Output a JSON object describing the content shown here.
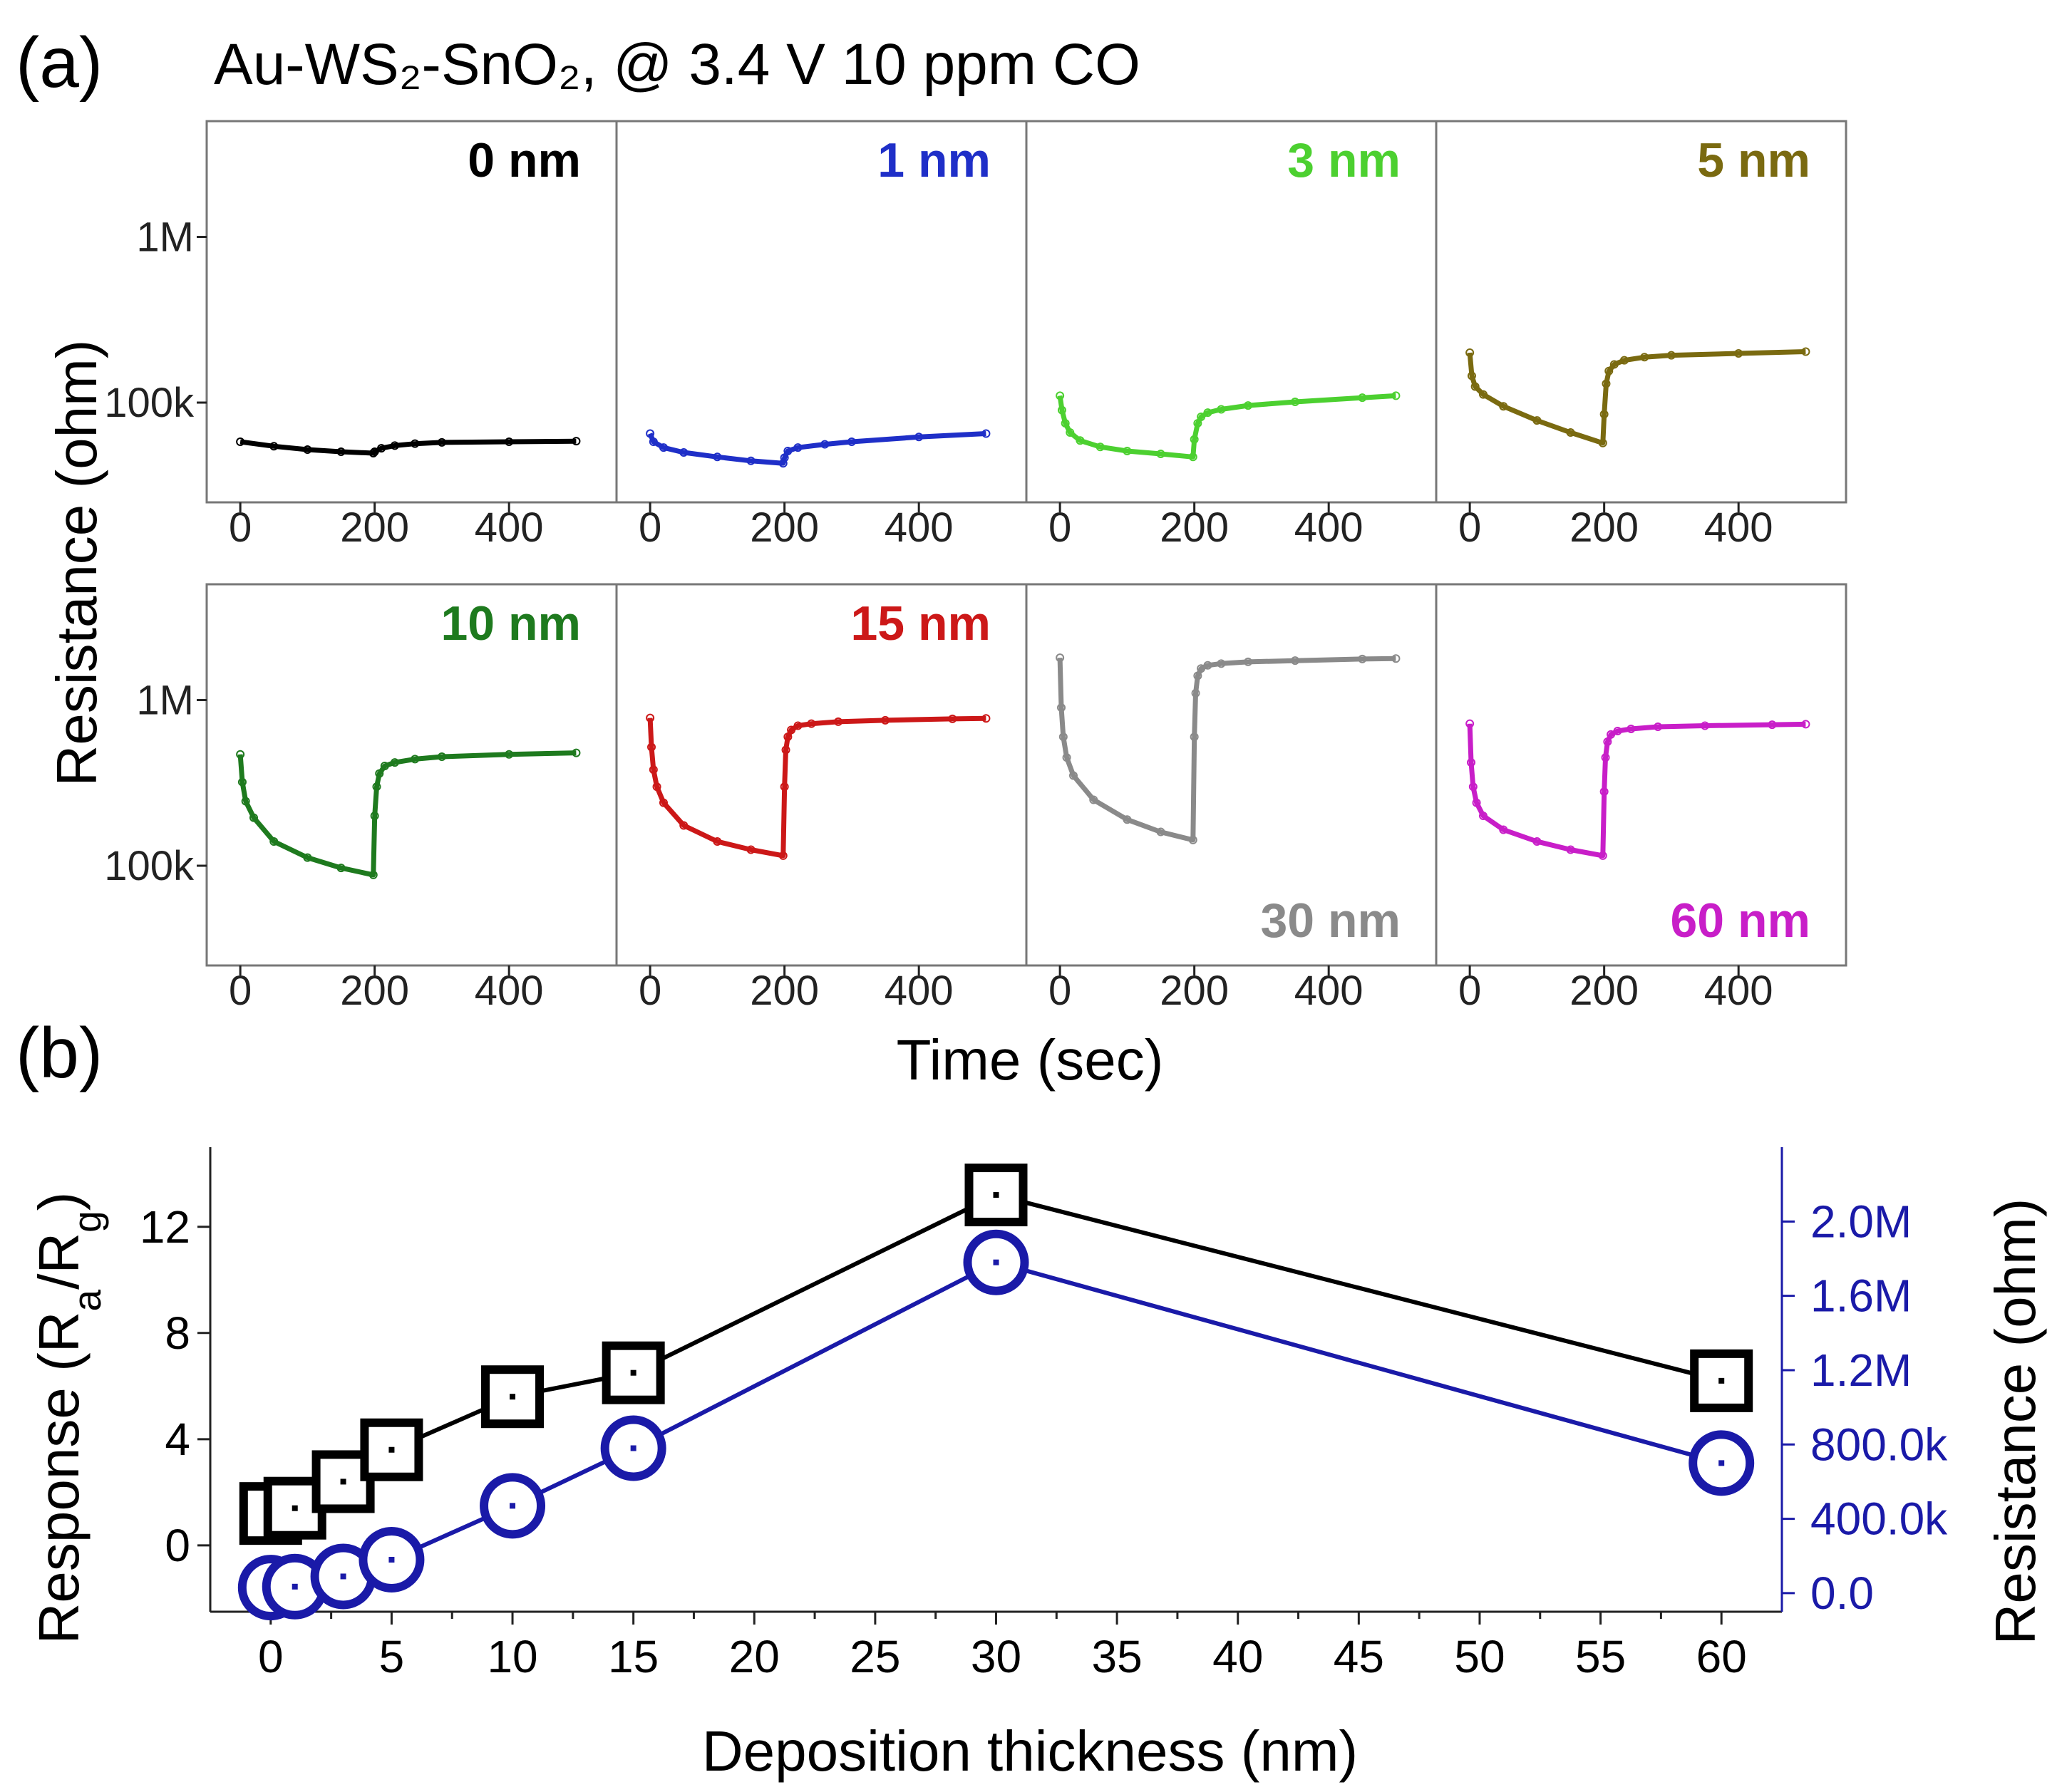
{
  "figure": {
    "panel_a_label": "(a)",
    "panel_b_label": "(b)",
    "title": "Au-WS₂-SnO₂, @ 3.4 V 10 ppm CO"
  },
  "chart_data": [
    {
      "type": "line",
      "panel": "a",
      "title": "Au-WS₂-SnO₂, @ 3.4 V 10 ppm CO",
      "xlabel": "Time (sec)",
      "ylabel": "Resistance (ohm)",
      "yscale": "log",
      "xlim": [
        -50,
        560
      ],
      "ylim": [
        25000,
        5000000
      ],
      "xticks": [
        0,
        200,
        400
      ],
      "yticks": [
        {
          "value": 100000,
          "label": "100k"
        },
        {
          "value": 1000000,
          "label": "1M"
        }
      ],
      "gas_on_time": 200,
      "series": [
        {
          "name": "0 nm",
          "color": "#000000",
          "label_pos": "top-right",
          "x": [
            0,
            50,
            100,
            150,
            198,
            200,
            210,
            230,
            260,
            300,
            400,
            500
          ],
          "y": [
            58000,
            54500,
            52000,
            50500,
            49500,
            50500,
            53000,
            55000,
            56500,
            57500,
            58000,
            58500
          ]
        },
        {
          "name": "1 nm",
          "color": "#1f2fc8",
          "label_pos": "top-right",
          "x": [
            0,
            5,
            20,
            50,
            100,
            150,
            198,
            200,
            205,
            220,
            260,
            300,
            400,
            500
          ],
          "y": [
            65000,
            58000,
            53500,
            50000,
            47000,
            44500,
            43000,
            46500,
            51000,
            53500,
            56000,
            58000,
            62000,
            65000
          ]
        },
        {
          "name": "3 nm",
          "color": "#4cd030",
          "label_pos": "top-right",
          "x": [
            0,
            3,
            8,
            15,
            30,
            60,
            100,
            150,
            198,
            200,
            205,
            210,
            220,
            240,
            280,
            350,
            450,
            500
          ],
          "y": [
            110000,
            90000,
            75000,
            66000,
            59000,
            54000,
            51000,
            49000,
            47000,
            60000,
            75000,
            82000,
            87000,
            91000,
            96000,
            101000,
            107000,
            110000
          ]
        },
        {
          "name": "5 nm",
          "color": "#7a6a10",
          "label_pos": "top-right",
          "x": [
            0,
            3,
            8,
            20,
            50,
            100,
            150,
            198,
            200,
            203,
            207,
            215,
            230,
            260,
            300,
            400,
            500
          ],
          "y": [
            200000,
            145000,
            125000,
            112000,
            95000,
            78000,
            66000,
            57000,
            85000,
            130000,
            155000,
            170000,
            180000,
            188000,
            193000,
            198000,
            203000
          ]
        },
        {
          "name": "10 nm",
          "color": "#1e7a1e",
          "label_pos": "top-right",
          "x": [
            0,
            3,
            8,
            20,
            50,
            100,
            150,
            198,
            200,
            203,
            207,
            215,
            230,
            260,
            300,
            400,
            500
          ],
          "y": [
            470000,
            320000,
            245000,
            195000,
            140000,
            112000,
            97000,
            88000,
            200000,
            300000,
            360000,
            400000,
            420000,
            440000,
            455000,
            470000,
            480000
          ]
        },
        {
          "name": "15 nm",
          "color": "#cc1818",
          "label_pos": "top-right",
          "x": [
            0,
            2,
            5,
            10,
            20,
            50,
            100,
            150,
            198,
            200,
            202,
            205,
            210,
            220,
            240,
            280,
            350,
            450,
            500
          ],
          "y": [
            780000,
            520000,
            380000,
            300000,
            240000,
            175000,
            140000,
            125000,
            115000,
            300000,
            500000,
            600000,
            660000,
            700000,
            720000,
            740000,
            755000,
            770000,
            775000
          ]
        },
        {
          "name": "30 nm",
          "color": "#8a8a8a",
          "label_pos": "bottom-right",
          "x": [
            0,
            2,
            5,
            10,
            20,
            50,
            100,
            150,
            198,
            200,
            202,
            205,
            210,
            220,
            240,
            280,
            350,
            450,
            500
          ],
          "y": [
            1800000,
            900000,
            600000,
            450000,
            350000,
            250000,
            190000,
            160000,
            143000,
            600000,
            1100000,
            1400000,
            1550000,
            1620000,
            1660000,
            1700000,
            1730000,
            1770000,
            1780000
          ]
        },
        {
          "name": "60 nm",
          "color": "#c81ec8",
          "label_pos": "bottom-right",
          "x": [
            0,
            2,
            5,
            10,
            20,
            50,
            100,
            150,
            198,
            200,
            202,
            205,
            210,
            220,
            240,
            280,
            350,
            450,
            500
          ],
          "y": [
            720000,
            420000,
            300000,
            240000,
            200000,
            165000,
            140000,
            125000,
            115000,
            280000,
            450000,
            560000,
            620000,
            650000,
            670000,
            690000,
            700000,
            710000,
            715000
          ]
        }
      ]
    },
    {
      "type": "line",
      "panel": "b",
      "xlabel": "Deposition thickness (nm)",
      "ylabel": "Response (Ra/Rg)",
      "ylabel_main": "Response (R",
      "ylabel_sub1": "a",
      "ylabel_mid": "/R",
      "ylabel_sub2": "g",
      "ylabel_end": ")",
      "y2label": "Resistance (ohm)",
      "xlim": [
        -2.5,
        62.5
      ],
      "ylim": [
        -2.5,
        15
      ],
      "y2lim": [
        -100000,
        2400000
      ],
      "xticks": [
        0,
        5,
        10,
        15,
        20,
        25,
        30,
        35,
        40,
        45,
        50,
        55,
        60
      ],
      "yticks": [
        0,
        4,
        8,
        12
      ],
      "y2ticks": [
        {
          "value": 0,
          "label": "0.0"
        },
        {
          "value": 400000,
          "label": "400.0k"
        },
        {
          "value": 800000,
          "label": "800.0k"
        },
        {
          "value": 1200000,
          "label": "1.2M"
        },
        {
          "value": 1600000,
          "label": "1.6M"
        },
        {
          "value": 2000000,
          "label": "2.0M"
        }
      ],
      "x": [
        0,
        1,
        3,
        5,
        10,
        15,
        30,
        60
      ],
      "series": [
        {
          "name": "Response",
          "axis": "left",
          "color": "#000000",
          "marker": "square",
          "values": [
            1.2,
            1.4,
            2.4,
            3.6,
            5.6,
            6.5,
            13.2,
            6.2
          ]
        },
        {
          "name": "Resistance",
          "axis": "right",
          "color": "#1a1aa8",
          "marker": "circle",
          "values": [
            30000,
            35000,
            90000,
            180000,
            470000,
            780000,
            1780000,
            700000
          ]
        }
      ]
    }
  ]
}
